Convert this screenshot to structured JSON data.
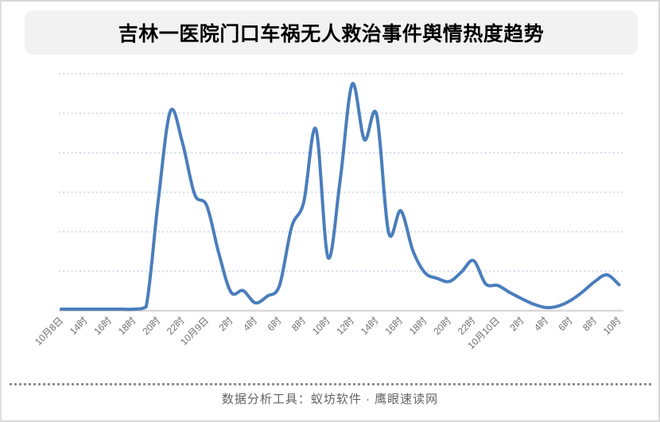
{
  "page": {
    "title": "吉林一医院门口车祸无人救治事件舆情热度趋势",
    "footer": "数据分析工具：蚁坊软件 · 鹰眼速读网"
  },
  "colors": {
    "line": "#4a7ebc",
    "gridline": "#ccd9ec",
    "axis_line": "#d9d9d9",
    "title_background": "#f2f2f2",
    "title_text": "#000000",
    "axis_label_text": "#6e6e6e",
    "footer_text": "#636363",
    "separator_dots": "#8f8f8f",
    "page_border": "#d7d7d7"
  },
  "chart_data": {
    "type": "line",
    "title": "吉林一医院门口车祸无人救治事件舆情热度趋势",
    "x_tick_labels": [
      "10月8日",
      "14时",
      "16时",
      "18时",
      "20时",
      "22时",
      "10月9日",
      "2时",
      "4时",
      "6时",
      "8时",
      "10时",
      "12时",
      "14时",
      "16时",
      "18时",
      "20时",
      "22时",
      "10月10日",
      "2时",
      "4时",
      "6时",
      "8时",
      "10时"
    ],
    "points_per_tick": 2,
    "point_interval": "1 hour; labeled ticks every 2 hours from 10月8日12时 to 10月10日10时",
    "values": [
      0.04,
      0.04,
      0.04,
      0.04,
      0.04,
      0.04,
      0.04,
      0.1,
      2.79,
      5.05,
      4.25,
      2.95,
      2.66,
      1.45,
      0.47,
      0.51,
      0.2,
      0.37,
      0.64,
      2.12,
      2.75,
      4.6,
      1.35,
      3.3,
      5.74,
      4.33,
      4.97,
      1.98,
      2.53,
      1.52,
      0.96,
      0.82,
      0.74,
      0.98,
      1.27,
      0.68,
      0.64,
      0.46,
      0.3,
      0.16,
      0.08,
      0.12,
      0.26,
      0.48,
      0.74,
      0.91,
      0.66
    ],
    "xlabel": "",
    "ylabel": "",
    "ylim": [
      0,
      6
    ],
    "y_axis": "unlabeled; 6 dotted horizontal gridlines above the baseline, 1 unit apart",
    "grid": "horizontal dotted",
    "legend": "none",
    "line_color": "#4a7ebc"
  }
}
